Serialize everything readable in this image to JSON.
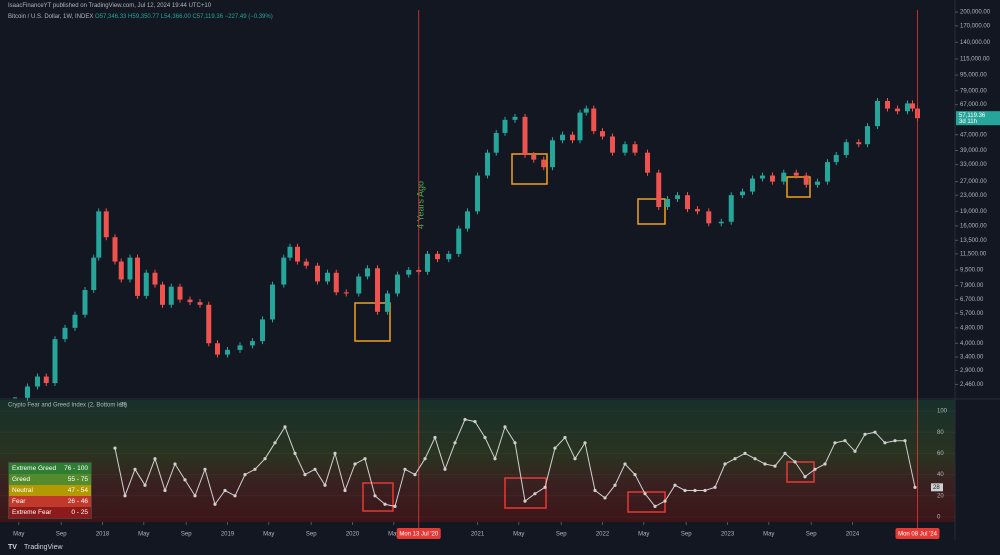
{
  "header": {
    "publisher": "IsaacFinanceYT published on TradingView.com, Jul 12, 2024 19:44 UTC+10",
    "symbol": "Bitcoin / U.S. Dollar, 1W, INDEX",
    "ohlc": "O57,346.33 H59,350.77 L54,366.00 C57,119.36 −227.49 (−0.39%)",
    "annotation": "4 Years Ago",
    "brand": "TradingView"
  },
  "chart_data": [
    {
      "type": "candlestick",
      "log_scale": true,
      "up_color": "#26a69a",
      "down_color": "#ef5350",
      "xlim": [
        2017.18,
        2024.82
      ],
      "ylim": [
        2120,
        205000
      ],
      "x": [
        2017.3,
        2017.4,
        2017.48,
        2017.55,
        2017.62,
        2017.7,
        2017.78,
        2017.86,
        2017.93,
        2017.97,
        2018.03,
        2018.1,
        2018.15,
        2018.22,
        2018.28,
        2018.35,
        2018.42,
        2018.48,
        2018.55,
        2018.62,
        2018.7,
        2018.78,
        2018.85,
        2018.92,
        2019.0,
        2019.1,
        2019.2,
        2019.28,
        2019.36,
        2019.45,
        2019.5,
        2019.56,
        2019.63,
        2019.72,
        2019.8,
        2019.87,
        2019.95,
        2020.05,
        2020.12,
        2020.2,
        2020.28,
        2020.36,
        2020.45,
        2020.53,
        2020.6,
        2020.68,
        2020.77,
        2020.85,
        2020.92,
        2021.0,
        2021.08,
        2021.15,
        2021.22,
        2021.3,
        2021.38,
        2021.45,
        2021.53,
        2021.6,
        2021.68,
        2021.76,
        2021.82,
        2021.87,
        2021.93,
        2022.0,
        2022.08,
        2022.18,
        2022.26,
        2022.36,
        2022.45,
        2022.52,
        2022.6,
        2022.68,
        2022.76,
        2022.85,
        2022.95,
        2023.03,
        2023.12,
        2023.2,
        2023.28,
        2023.36,
        2023.45,
        2023.55,
        2023.63,
        2023.72,
        2023.8,
        2023.87,
        2023.95,
        2024.05,
        2024.12,
        2024.2,
        2024.28,
        2024.36,
        2024.44,
        2024.48,
        2024.52
      ],
      "values": [
        2100,
        2400,
        2700,
        2500,
        4200,
        4800,
        5600,
        7500,
        11000,
        19000,
        14000,
        10500,
        8500,
        11000,
        7000,
        9200,
        8000,
        6300,
        7800,
        6700,
        6500,
        6300,
        4000,
        3500,
        3700,
        3900,
        4100,
        5300,
        8000,
        11000,
        12500,
        10500,
        10000,
        8300,
        9200,
        7300,
        7200,
        8800,
        9700,
        5800,
        7200,
        9000,
        9500,
        9300,
        11500,
        10800,
        11500,
        15500,
        19000,
        29000,
        38000,
        48000,
        56000,
        58000,
        37000,
        35000,
        32000,
        44000,
        47000,
        44000,
        61000,
        64000,
        49000,
        46000,
        38000,
        42000,
        38000,
        30000,
        20000,
        22000,
        23000,
        19500,
        19000,
        16500,
        16800,
        23000,
        24000,
        28000,
        29000,
        27000,
        30000,
        29000,
        26000,
        27000,
        34000,
        37000,
        43000,
        42000,
        52000,
        70000,
        64000,
        62000,
        68000,
        64000,
        57119.36
      ],
      "yticks": [
        {
          "value": 200000,
          "label": "200,000.00"
        },
        {
          "value": 170000,
          "label": "170,000.00"
        },
        {
          "value": 140000,
          "label": "140,000.00"
        },
        {
          "value": 115000,
          "label": "115,000.00"
        },
        {
          "value": 95000,
          "label": "95,000.00"
        },
        {
          "value": 79000,
          "label": "79,000.00"
        },
        {
          "value": 67000,
          "label": "67,000.00"
        },
        {
          "value": 47000,
          "label": "47,000.00"
        },
        {
          "value": 39000,
          "label": "39,000.00"
        },
        {
          "value": 33000,
          "label": "33,000.00"
        },
        {
          "value": 27000,
          "label": "27,000.00"
        },
        {
          "value": 23000,
          "label": "23,000.00"
        },
        {
          "value": 19000,
          "label": "19,000.00"
        },
        {
          "value": 16000,
          "label": "16,000.00"
        },
        {
          "value": 13500,
          "label": "13,500.00"
        },
        {
          "value": 11500,
          "label": "11,500.00"
        },
        {
          "value": 9500,
          "label": "9,500.00"
        },
        {
          "value": 7900,
          "label": "7,900.00"
        },
        {
          "value": 6700,
          "label": "6,700.00"
        },
        {
          "value": 5700,
          "label": "5,700.00"
        },
        {
          "value": 4800,
          "label": "4,800.00"
        },
        {
          "value": 4000,
          "label": "4,000.00"
        },
        {
          "value": 3400,
          "label": "3,400.00"
        },
        {
          "value": 2900,
          "label": "2,900.00"
        },
        {
          "value": 2460,
          "label": "2,460.00"
        }
      ],
      "last_price": {
        "value": 57119.36,
        "label": "57,119.36",
        "countdown": "3d 11h",
        "color": "#26a69a"
      },
      "xticks": [
        {
          "value": 2017.33,
          "label": "May"
        },
        {
          "value": 2017.67,
          "label": "Sep"
        },
        {
          "value": 2018,
          "label": "2018"
        },
        {
          "value": 2018.33,
          "label": "May"
        },
        {
          "value": 2018.67,
          "label": "Sep"
        },
        {
          "value": 2019,
          "label": "2019"
        },
        {
          "value": 2019.33,
          "label": "May"
        },
        {
          "value": 2019.67,
          "label": "Sep"
        },
        {
          "value": 2020,
          "label": "2020"
        },
        {
          "value": 2020.33,
          "label": "May"
        },
        {
          "value": 2021,
          "label": "2021"
        },
        {
          "value": 2021.33,
          "label": "May"
        },
        {
          "value": 2021.67,
          "label": "Sep"
        },
        {
          "value": 2022,
          "label": "2022"
        },
        {
          "value": 2022.33,
          "label": "May"
        },
        {
          "value": 2022.67,
          "label": "Sep"
        },
        {
          "value": 2023,
          "label": "2023"
        },
        {
          "value": 2023.33,
          "label": "May"
        },
        {
          "value": 2023.67,
          "label": "Sep"
        },
        {
          "value": 2024,
          "label": "2024"
        }
      ],
      "markers": [
        {
          "x": 2020.53,
          "label": "Mon 13 Jul '20"
        },
        {
          "x": 2024.52,
          "label": "Mon 08 Jul '24"
        }
      ]
    },
    {
      "type": "line",
      "title": "Crypto Fear and Greed Index (2, Bottom left)",
      "current": 28,
      "color": "#d0d0d0",
      "xlim": [
        2017.18,
        2024.82
      ],
      "ylim": [
        0,
        100
      ],
      "yticks": [
        0,
        20,
        40,
        60,
        80,
        100
      ],
      "x": [
        2018.1,
        2018.18,
        2018.26,
        2018.34,
        2018.42,
        2018.5,
        2018.58,
        2018.66,
        2018.74,
        2018.82,
        2018.9,
        2018.98,
        2019.06,
        2019.14,
        2019.22,
        2019.3,
        2019.38,
        2019.46,
        2019.54,
        2019.62,
        2019.7,
        2019.78,
        2019.86,
        2019.94,
        2020.02,
        2020.1,
        2020.18,
        2020.26,
        2020.34,
        2020.42,
        2020.5,
        2020.58,
        2020.66,
        2020.74,
        2020.82,
        2020.9,
        2020.98,
        2021.06,
        2021.14,
        2021.22,
        2021.3,
        2021.38,
        2021.46,
        2021.54,
        2021.62,
        2021.7,
        2021.78,
        2021.86,
        2021.94,
        2022.02,
        2022.1,
        2022.18,
        2022.26,
        2022.34,
        2022.42,
        2022.5,
        2022.58,
        2022.66,
        2022.74,
        2022.82,
        2022.9,
        2022.98,
        2023.06,
        2023.14,
        2023.22,
        2023.3,
        2023.38,
        2023.46,
        2023.54,
        2023.62,
        2023.7,
        2023.78,
        2023.86,
        2023.94,
        2024.02,
        2024.1,
        2024.18,
        2024.26,
        2024.34,
        2024.42,
        2024.5
      ],
      "values": [
        65,
        20,
        45,
        30,
        55,
        25,
        50,
        35,
        20,
        45,
        12,
        25,
        20,
        40,
        45,
        55,
        70,
        85,
        60,
        40,
        45,
        30,
        60,
        25,
        50,
        55,
        20,
        12,
        10,
        45,
        40,
        55,
        75,
        45,
        70,
        92,
        90,
        75,
        55,
        85,
        70,
        15,
        22,
        28,
        65,
        75,
        55,
        70,
        25,
        18,
        30,
        50,
        40,
        22,
        10,
        15,
        30,
        25,
        25,
        25,
        28,
        50,
        55,
        60,
        55,
        50,
        48,
        60,
        52,
        38,
        45,
        50,
        70,
        72,
        62,
        78,
        80,
        70,
        72,
        72,
        28
      ],
      "zones": [
        {
          "name": "Extreme Greed",
          "range": "76 - 100",
          "color": "#2e7d32"
        },
        {
          "name": "Greed",
          "range": "55 - 75",
          "color": "#558b2f"
        },
        {
          "name": "Neutral",
          "range": "47 - 54",
          "color": "#b39a00"
        },
        {
          "name": "Fear",
          "range": "26 - 46",
          "color": "#c0392b"
        },
        {
          "name": "Extreme Fear",
          "range": "0 - 25",
          "color": "#8e1b1b"
        }
      ]
    }
  ]
}
